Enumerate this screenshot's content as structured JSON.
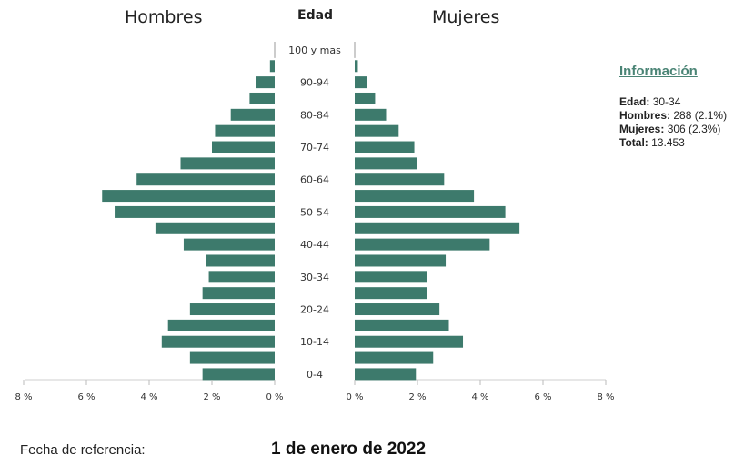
{
  "header": {
    "left_title": "Hombres",
    "center_title": "Edad",
    "right_title": "Mujeres"
  },
  "info": {
    "title": "Información",
    "rows": [
      {
        "label": "Edad:",
        "value": "30-34"
      },
      {
        "label": "Hombres:",
        "value": "288 (2.1%)"
      },
      {
        "label": "Mujeres:",
        "value": "306 (2.3%)"
      },
      {
        "label": "Total:",
        "value": "13.453"
      }
    ]
  },
  "footer": {
    "ref_label": "Fecha de referencia:",
    "ref_date": "1 de enero de 2022"
  },
  "chart_data": {
    "type": "bar",
    "orientation": "horizontal-population-pyramid",
    "categories": [
      "100 y mas",
      "95-99",
      "90-94",
      "85-89",
      "80-84",
      "75-79",
      "70-74",
      "65-69",
      "60-64",
      "55-59",
      "50-54",
      "45-49",
      "40-44",
      "35-39",
      "30-34",
      "25-29",
      "20-24",
      "15-19",
      "10-14",
      "5-9",
      "0-4"
    ],
    "visible_category_labels": [
      "100 y mas",
      "90-94",
      "80-84",
      "70-74",
      "60-64",
      "50-54",
      "40-44",
      "30-34",
      "20-24",
      "10-14",
      "0-4"
    ],
    "series": [
      {
        "name": "Hombres",
        "values": [
          0,
          0.15,
          0.6,
          0.8,
          1.4,
          1.9,
          2.0,
          3.0,
          4.4,
          5.5,
          5.1,
          3.8,
          2.9,
          2.2,
          2.1,
          2.3,
          2.7,
          3.4,
          3.6,
          2.7,
          2.3
        ]
      },
      {
        "name": "Mujeres",
        "values": [
          0,
          0.1,
          0.4,
          0.65,
          1.0,
          1.4,
          1.9,
          2.0,
          2.85,
          3.8,
          4.8,
          5.25,
          4.3,
          2.9,
          2.3,
          2.3,
          2.7,
          3.0,
          3.45,
          2.5,
          1.95
        ]
      }
    ],
    "xlim": [
      0,
      8
    ],
    "tick_labels": [
      "8 %",
      "6 %",
      "4 %",
      "2 %",
      "0 %"
    ],
    "tick_labels_right": [
      "0 %",
      "2 %",
      "4 %",
      "6 %",
      "8 %"
    ],
    "bar_color": "#3d7a6c"
  }
}
